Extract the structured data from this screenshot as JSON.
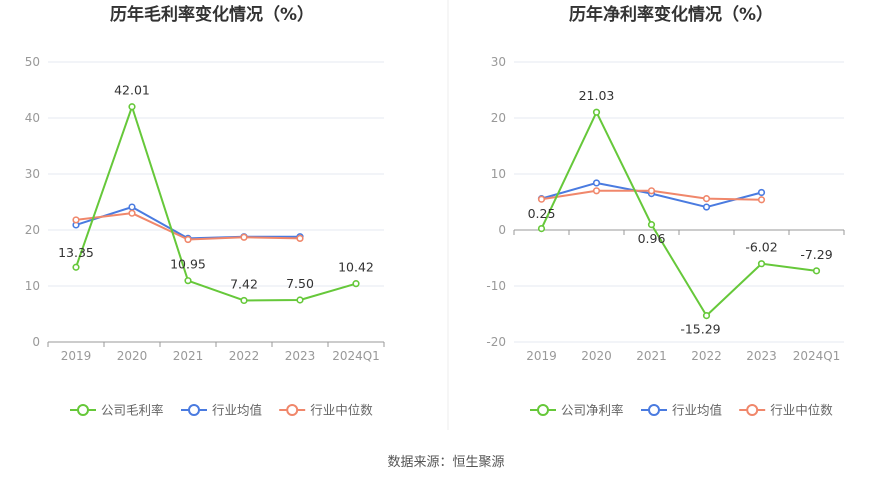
{
  "colors": {
    "company": "#66c83a",
    "industry_avg": "#4a7be0",
    "industry_median": "#f0876b",
    "grid": "#e4e8f2",
    "axis": "#999999",
    "divider": "#eeeeee"
  },
  "source": "数据来源：恒生聚源",
  "chart_data": [
    {
      "type": "line",
      "title": "历年毛利率变化情况（%）",
      "categories": [
        "2019",
        "2020",
        "2021",
        "2022",
        "2023",
        "2024Q1"
      ],
      "ylim": [
        0,
        50
      ],
      "yticks": [
        "0",
        "10",
        "20",
        "30",
        "40",
        "50"
      ],
      "series": [
        {
          "key": "company",
          "name": "公司毛利率",
          "values": [
            13.35,
            42.01,
            10.95,
            7.42,
            7.5,
            10.42
          ],
          "labels": [
            "13.35",
            "42.01",
            "10.95",
            "7.42",
            "7.50",
            "10.42"
          ]
        },
        {
          "key": "industry_avg",
          "name": "行业均值",
          "values": [
            20.9,
            24.1,
            18.5,
            18.8,
            18.8,
            null
          ]
        },
        {
          "key": "industry_median",
          "name": "行业中位数",
          "values": [
            21.8,
            23.0,
            18.3,
            18.7,
            18.5,
            null
          ]
        }
      ]
    },
    {
      "type": "line",
      "title": "历年净利率变化情况（%）",
      "categories": [
        "2019",
        "2020",
        "2021",
        "2022",
        "2023",
        "2024Q1"
      ],
      "ylim": [
        -20,
        30
      ],
      "yticks": [
        "-20",
        "-10",
        "0",
        "10",
        "20",
        "30"
      ],
      "series": [
        {
          "key": "company",
          "name": "公司净利率",
          "values": [
            0.25,
            21.03,
            0.96,
            -15.29,
            -6.02,
            -7.29
          ],
          "labels": [
            "0.25",
            "21.03",
            "0.96",
            "-15.29",
            "-6.02",
            "-7.29"
          ]
        },
        {
          "key": "industry_avg",
          "name": "行业均值",
          "values": [
            5.6,
            8.4,
            6.5,
            4.1,
            6.7,
            null
          ]
        },
        {
          "key": "industry_median",
          "name": "行业中位数",
          "values": [
            5.5,
            7.0,
            7.0,
            5.6,
            5.4,
            null
          ]
        }
      ]
    }
  ]
}
